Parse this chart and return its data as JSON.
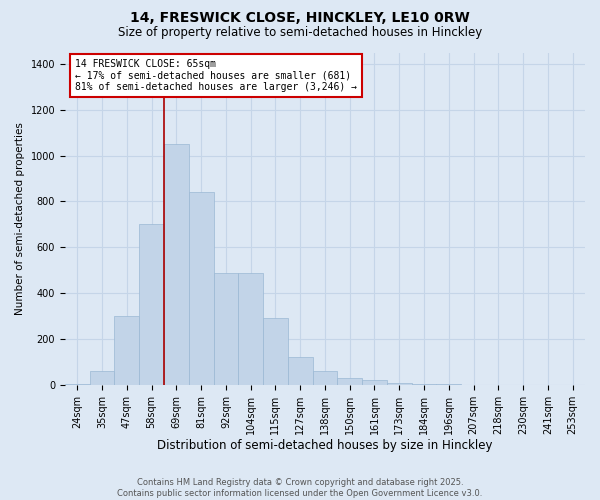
{
  "title": "14, FRESWICK CLOSE, HINCKLEY, LE10 0RW",
  "subtitle": "Size of property relative to semi-detached houses in Hinckley",
  "xlabel": "Distribution of semi-detached houses by size in Hinckley",
  "ylabel": "Number of semi-detached properties",
  "categories": [
    "24sqm",
    "35sqm",
    "47sqm",
    "58sqm",
    "69sqm",
    "81sqm",
    "92sqm",
    "104sqm",
    "115sqm",
    "127sqm",
    "138sqm",
    "150sqm",
    "161sqm",
    "173sqm",
    "184sqm",
    "196sqm",
    "207sqm",
    "218sqm",
    "230sqm",
    "241sqm",
    "253sqm"
  ],
  "values": [
    5,
    60,
    300,
    700,
    1050,
    840,
    490,
    490,
    290,
    120,
    60,
    30,
    20,
    10,
    5,
    2,
    0,
    0,
    0,
    0,
    0
  ],
  "bar_color": "#c2d4e8",
  "bar_edge_color": "#9ab8d4",
  "annotation_text": "14 FRESWICK CLOSE: 65sqm\n← 17% of semi-detached houses are smaller (681)\n81% of semi-detached houses are larger (3,246) →",
  "vline_color": "#aa0000",
  "vline_x_idx": 3.5,
  "ylim": [
    0,
    1450
  ],
  "yticks": [
    0,
    200,
    400,
    600,
    800,
    1000,
    1200,
    1400
  ],
  "background_color": "#dde8f4",
  "plot_bg_color": "#dde8f4",
  "grid_color": "#c5d5e8",
  "title_fontsize": 10,
  "subtitle_fontsize": 8.5,
  "xlabel_fontsize": 8.5,
  "ylabel_fontsize": 7.5,
  "tick_fontsize": 7,
  "footer_text": "Contains HM Land Registry data © Crown copyright and database right 2025.\nContains public sector information licensed under the Open Government Licence v3.0.",
  "footer_fontsize": 6
}
